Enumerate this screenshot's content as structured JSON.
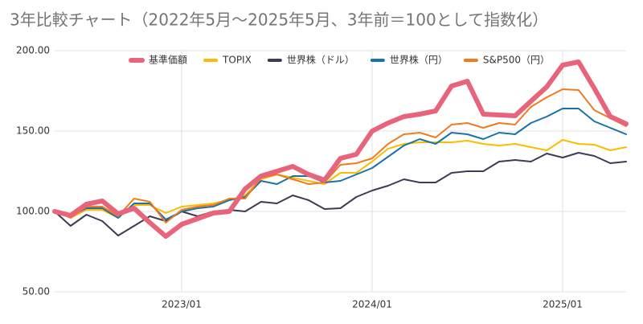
{
  "chart_data": {
    "type": "line",
    "title": "3年比較チャート（2022年5月～2025年5月、3年前＝100として指数化）",
    "categories": [
      null,
      null,
      null,
      null,
      null,
      null,
      null,
      null,
      "2023/01",
      null,
      null,
      null,
      null,
      null,
      null,
      null,
      null,
      null,
      null,
      null,
      "2024/01",
      null,
      null,
      null,
      null,
      null,
      null,
      null,
      null,
      null,
      null,
      null,
      "2025/01",
      null,
      null,
      null,
      null
    ],
    "series": [
      {
        "name": "基準価額",
        "color": "#e8647a",
        "values": [
          100,
          97.5,
          104.5,
          106.5,
          98.5,
          102,
          93,
          84.5,
          92,
          95.5,
          99,
          100,
          114,
          122,
          125,
          128,
          123,
          119.5,
          133,
          135.5,
          150,
          155,
          159,
          160.5,
          162.5,
          178,
          181,
          160.5,
          160,
          159.5,
          168.5,
          177.5,
          191,
          193,
          176.5,
          159,
          154.5
        ]
      },
      {
        "name": "TOPIX",
        "color": "#fbbc04",
        "values": [
          100,
          96,
          101,
          101,
          96,
          104,
          104,
          99,
          103,
          104,
          105,
          107,
          110,
          120,
          123,
          121,
          119,
          117,
          124,
          124,
          131,
          139,
          142,
          143,
          143,
          143,
          144,
          142,
          141,
          142,
          140,
          138,
          144.5,
          142,
          141.5,
          138,
          140
        ]
      },
      {
        "name": "世界株（ドル）",
        "color": "#3c3c54",
        "values": [
          100,
          91,
          98,
          94,
          85,
          91,
          97,
          94,
          100,
          97,
          100,
          101,
          100,
          106,
          105,
          110,
          107,
          101.5,
          102,
          109,
          113,
          116,
          120,
          118,
          118,
          124,
          125,
          125,
          131,
          132,
          131,
          136,
          133.5,
          136.5,
          134.5,
          130,
          131
        ]
      },
      {
        "name": "世界株（円）",
        "color": "#1a73a8",
        "values": [
          100,
          97,
          102,
          102,
          96,
          105,
          105,
          95,
          100,
          102,
          103,
          107,
          109,
          119,
          117,
          122,
          122,
          118,
          119,
          123,
          127,
          134,
          141,
          145,
          142,
          149,
          148,
          145,
          149,
          148,
          155,
          159,
          164,
          164,
          156,
          152,
          148
        ]
      },
      {
        "name": "S&P500（円）",
        "color": "#f07b1e",
        "values": [
          101,
          96,
          103,
          103,
          97,
          108,
          106,
          93,
          101,
          103,
          104,
          108,
          108,
          121,
          123,
          120,
          117,
          118,
          129,
          130,
          133,
          142,
          148,
          149,
          146,
          154,
          155,
          152,
          155,
          154,
          165,
          171,
          176,
          175.5,
          163,
          158,
          153
        ]
      }
    ],
    "ylim": [
      50,
      200
    ],
    "yticks": [
      {
        "value": 50,
        "label": "50.00"
      },
      {
        "value": 100,
        "label": "100.00"
      },
      {
        "value": 150,
        "label": "150.00"
      },
      {
        "value": 200,
        "label": "200.00"
      }
    ],
    "grid": true,
    "legend": "top"
  }
}
